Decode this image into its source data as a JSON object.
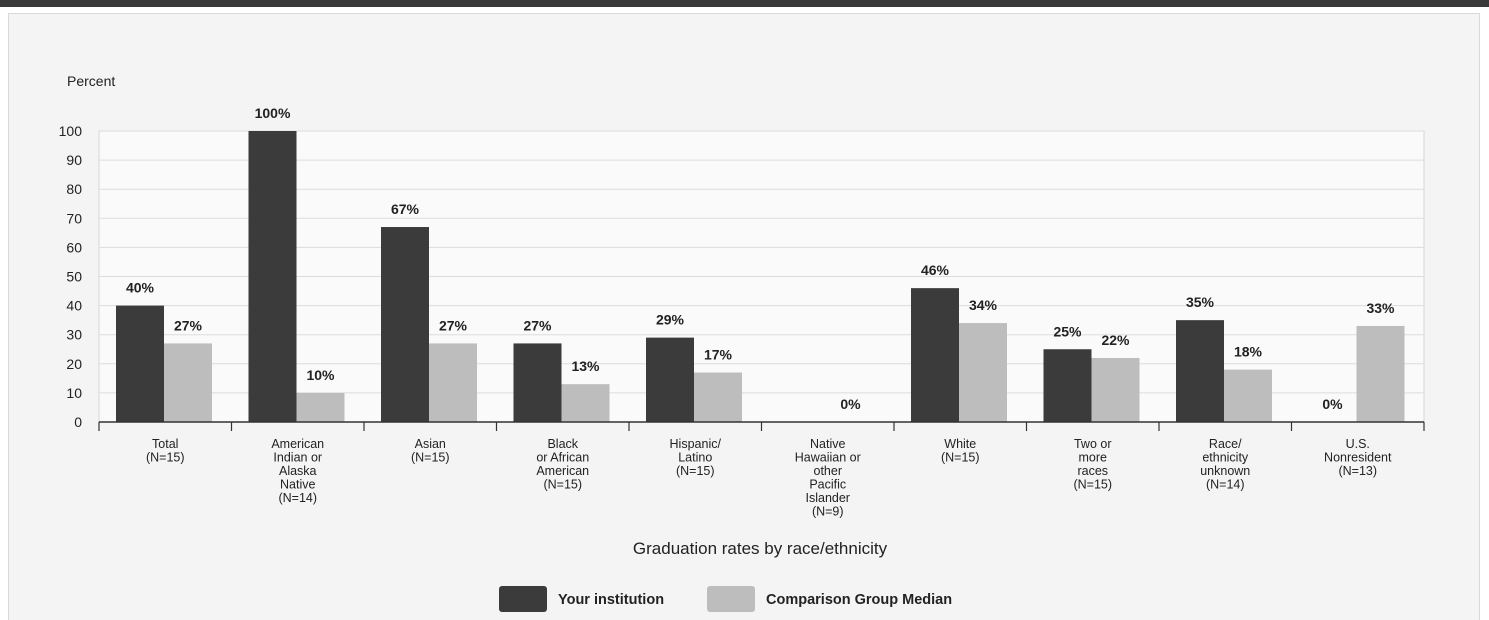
{
  "chart_data": {
    "type": "bar",
    "ylabel": "Percent",
    "xlabel": "Graduation rates by race/ethnicity",
    "ylim": [
      0,
      100
    ],
    "yticks": [
      0,
      10,
      20,
      30,
      40,
      50,
      60,
      70,
      80,
      90,
      100
    ],
    "grid": true,
    "legend_position": "bottom",
    "categories": [
      [
        "Total",
        "(N=15)"
      ],
      [
        "American",
        "Indian or",
        "Alaska",
        "Native",
        "(N=14)"
      ],
      [
        "Asian",
        "(N=15)"
      ],
      [
        "Black",
        "or African",
        "American",
        "(N=15)"
      ],
      [
        "Hispanic/",
        "Latino",
        "(N=15)"
      ],
      [
        "Native",
        "Hawaiian or",
        "other",
        "Pacific",
        "Islander",
        "(N=9)"
      ],
      [
        "White",
        "(N=15)"
      ],
      [
        "Two or",
        "more",
        "races",
        "(N=15)"
      ],
      [
        "Race/",
        "ethnicity",
        "unknown",
        "(N=14)"
      ],
      [
        "U.S.",
        "Nonresident",
        "(N=13)"
      ]
    ],
    "series": [
      {
        "name": "Your institution",
        "color": "#3b3b3b",
        "values": [
          40,
          100,
          67,
          27,
          29,
          null,
          46,
          25,
          35,
          0
        ],
        "labels": [
          "40%",
          "100%",
          "67%",
          "27%",
          "29%",
          "",
          "46%",
          "25%",
          "35%",
          "0%"
        ]
      },
      {
        "name": "Comparison Group Median",
        "color": "#bdbdbd",
        "values": [
          27,
          10,
          27,
          13,
          17,
          0,
          34,
          22,
          18,
          33
        ],
        "labels": [
          "27%",
          "10%",
          "27%",
          "13%",
          "17%",
          "0%",
          "34%",
          "22%",
          "18%",
          "33%"
        ]
      }
    ]
  }
}
